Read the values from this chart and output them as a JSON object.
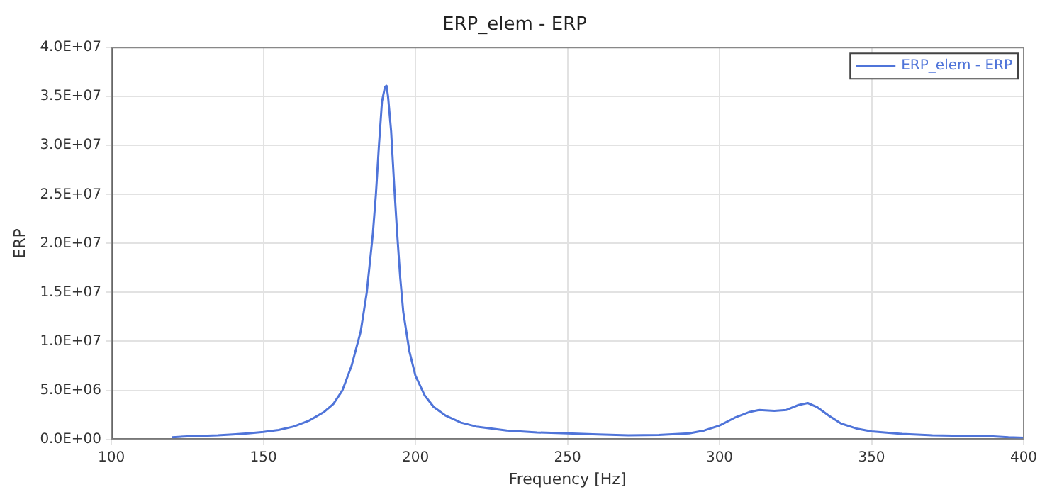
{
  "chart_data": {
    "type": "line",
    "title": "ERP_elem - ERP",
    "xlabel": "Frequency [Hz]",
    "ylabel": "ERP",
    "xlim": [
      100,
      400
    ],
    "xticks": [
      100,
      150,
      200,
      250,
      300,
      350,
      400
    ],
    "ylim": [
      0,
      40000000
    ],
    "yticks": [
      {
        "value": 0,
        "label": "0.0E+00"
      },
      {
        "value": 5000000,
        "label": "5.0E+06"
      },
      {
        "value": 10000000,
        "label": "1.0E+07"
      },
      {
        "value": 15000000,
        "label": "1.5E+07"
      },
      {
        "value": 20000000,
        "label": "2.0E+07"
      },
      {
        "value": 25000000,
        "label": "2.5E+07"
      },
      {
        "value": 30000000,
        "label": "3.0E+07"
      },
      {
        "value": 35000000,
        "label": "3.5E+07"
      },
      {
        "value": 40000000,
        "label": "4.0E+07"
      }
    ],
    "grid": true,
    "legend": "top right",
    "marker": "none",
    "line_style": "solid",
    "series": [
      {
        "name": "ERP_elem - ERP",
        "color": "#4f74d9",
        "x": [
          120,
          125,
          130,
          135,
          140,
          145,
          150,
          155,
          160,
          165,
          170,
          173,
          176,
          179,
          182,
          184,
          186,
          187,
          188,
          189,
          190,
          190.5,
          191,
          192,
          193,
          194,
          195,
          196,
          198,
          200,
          203,
          206,
          210,
          215,
          220,
          230,
          240,
          250,
          260,
          270,
          280,
          290,
          295,
          300,
          305,
          310,
          313,
          318,
          322,
          326,
          329,
          332,
          336,
          340,
          345,
          350,
          360,
          370,
          380,
          390,
          395,
          400
        ],
        "values": [
          200000,
          300000,
          350000,
          400000,
          500000,
          600000,
          750000,
          950000,
          1300000,
          1900000,
          2800000,
          3600000,
          5000000,
          7500000,
          11000000,
          15000000,
          21000000,
          25000000,
          30000000,
          34500000,
          36000000,
          36100000,
          35000000,
          31500000,
          26000000,
          21000000,
          16500000,
          13000000,
          9000000,
          6500000,
          4500000,
          3300000,
          2400000,
          1700000,
          1300000,
          900000,
          700000,
          600000,
          500000,
          400000,
          450000,
          600000,
          900000,
          1400000,
          2200000,
          2800000,
          3000000,
          2900000,
          3000000,
          3500000,
          3700000,
          3300000,
          2400000,
          1600000,
          1100000,
          800000,
          550000,
          400000,
          350000,
          300000,
          200000,
          150000
        ]
      }
    ]
  }
}
